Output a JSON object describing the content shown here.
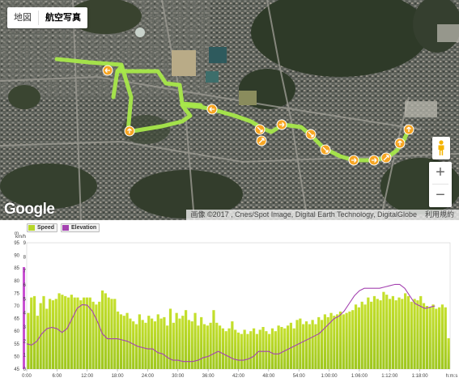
{
  "map": {
    "type_buttons": [
      "地図",
      "航空写真"
    ],
    "active_type": "航空写真",
    "google_logo": "Google",
    "attribution": "画像 ©2017 , Cnes/Spot Image, Digital Earth Technology, DigitalGlobe",
    "terms": "利用規約",
    "zoom_in": "+",
    "zoom_out": "−",
    "route_color": "#a8e84a",
    "marker_color": "#f7a623"
  },
  "chart": {
    "legend": [
      {
        "label": "Speed",
        "color": "#b6d62a"
      },
      {
        "label": "Elevation",
        "color": "#a442b0"
      }
    ],
    "left_axis_unit": "m",
    "right_axis_unit": "km/h",
    "x_axis_unit": "h:m:s",
    "left_axis_ticks": [
      "95",
      "90",
      "85",
      "80",
      "75",
      "70",
      "65",
      "60",
      "55",
      "50",
      "45"
    ],
    "right_axis_ticks": [
      "9",
      "8",
      "7",
      "6",
      "5",
      "4",
      "3",
      "2",
      "1",
      "0"
    ],
    "x_ticks": [
      "0:00",
      "6:00",
      "12:00",
      "18:00",
      "24:00",
      "30:00",
      "36:00",
      "42:00",
      "48:00",
      "54:00",
      "1:00:00",
      "1:06:00",
      "1:12:00",
      "1:18:00"
    ]
  },
  "chart_data": {
    "type": "bar",
    "x_unit": "minutes",
    "x_range": [
      0,
      84
    ],
    "speed_kmh": [
      4.0,
      5.1,
      5.2,
      3.8,
      4.7,
      5.2,
      4.3,
      5.0,
      4.9,
      5.0,
      5.4,
      5.3,
      5.2,
      5.1,
      5.3,
      5.1,
      5.1,
      4.9,
      5.1,
      5.1,
      5.1,
      4.8,
      4.6,
      4.8,
      5.6,
      5.4,
      5.1,
      5.0,
      5.0,
      4.1,
      3.9,
      3.8,
      4.0,
      3.6,
      3.4,
      3.2,
      3.9,
      3.5,
      3.3,
      3.8,
      3.6,
      3.4,
      3.9,
      3.6,
      3.7,
      3.1,
      4.3,
      3.3,
      4.0,
      3.6,
      3.8,
      4.2,
      3.5,
      3.4,
      4.0,
      3.1,
      3.7,
      3.2,
      3.1,
      3.3,
      4.2,
      3.3,
      3.1,
      2.9,
      2.7,
      2.9,
      3.4,
      2.8,
      2.6,
      2.5,
      2.8,
      2.5,
      2.7,
      2.9,
      2.5,
      2.8,
      3.0,
      2.7,
      2.5,
      2.9,
      2.7,
      3.1,
      3.0,
      2.9,
      3.1,
      3.3,
      2.9,
      3.5,
      3.6,
      3.2,
      3.4,
      3.2,
      3.5,
      3.2,
      3.7,
      3.5,
      3.9,
      3.7,
      4.0,
      3.8,
      3.9,
      4.1,
      3.9,
      4.0,
      4.1,
      4.2,
      4.6,
      4.4,
      4.8,
      4.6,
      5.1,
      4.8,
      5.2,
      5.0,
      4.9,
      5.5,
      5.3,
      5.0,
      5.2,
      4.9,
      5.1,
      5.0,
      5.4,
      5.2,
      4.8,
      5.0,
      4.9,
      5.2,
      4.7,
      4.5,
      4.4,
      4.6,
      4.3,
      4.4,
      4.6,
      4.4,
      2.2
    ],
    "elevation_m": [
      [
        0,
        55
      ],
      [
        1,
        54.5
      ],
      [
        2,
        56
      ],
      [
        3,
        59
      ],
      [
        4,
        61
      ],
      [
        5,
        61.5
      ],
      [
        6,
        61
      ],
      [
        7,
        59.5
      ],
      [
        8,
        61
      ],
      [
        9,
        65
      ],
      [
        10,
        69
      ],
      [
        11,
        70.5
      ],
      [
        12,
        70.3
      ],
      [
        13,
        68
      ],
      [
        14,
        64
      ],
      [
        15,
        59
      ],
      [
        16,
        57
      ],
      [
        17,
        57
      ],
      [
        18,
        57
      ],
      [
        19,
        56.5
      ],
      [
        20,
        56
      ],
      [
        21,
        55
      ],
      [
        22,
        54
      ],
      [
        23,
        53.5
      ],
      [
        24,
        53
      ],
      [
        25,
        53
      ],
      [
        26,
        51.5
      ],
      [
        27,
        51
      ],
      [
        28,
        49.5
      ],
      [
        29,
        48.5
      ],
      [
        30,
        48.5
      ],
      [
        31,
        48
      ],
      [
        32,
        48
      ],
      [
        33,
        48
      ],
      [
        34,
        48.5
      ],
      [
        35,
        49.5
      ],
      [
        36,
        50
      ],
      [
        37,
        51
      ],
      [
        38,
        52
      ],
      [
        39,
        51
      ],
      [
        40,
        50
      ],
      [
        41,
        49
      ],
      [
        42,
        48.5
      ],
      [
        43,
        48.5
      ],
      [
        44,
        49
      ],
      [
        45,
        50
      ],
      [
        46,
        52
      ],
      [
        47,
        52
      ],
      [
        48,
        52
      ],
      [
        49,
        51
      ],
      [
        50,
        51
      ],
      [
        51,
        52
      ],
      [
        52,
        53
      ],
      [
        53,
        54
      ],
      [
        54,
        55
      ],
      [
        55,
        56
      ],
      [
        56,
        57
      ],
      [
        57,
        58
      ],
      [
        58,
        59
      ],
      [
        59,
        61
      ],
      [
        60,
        63
      ],
      [
        61,
        65
      ],
      [
        62,
        66
      ],
      [
        63,
        68
      ],
      [
        64,
        71
      ],
      [
        65,
        74
      ],
      [
        66,
        76
      ],
      [
        67,
        77
      ],
      [
        68,
        77
      ],
      [
        69,
        77
      ],
      [
        70,
        77
      ],
      [
        71,
        77.5
      ],
      [
        72,
        78
      ],
      [
        73,
        78.5
      ],
      [
        74,
        78.5
      ],
      [
        75,
        77
      ],
      [
        76,
        74
      ],
      [
        77,
        71
      ],
      [
        78,
        70
      ],
      [
        79,
        69
      ],
      [
        80,
        69.5
      ],
      [
        81,
        70
      ]
    ],
    "y_left": {
      "label": "m",
      "range": [
        45,
        95
      ]
    },
    "y_right": {
      "label": "km/h",
      "range": [
        0,
        9
      ]
    },
    "legend_position": "top-left",
    "grid": false
  }
}
